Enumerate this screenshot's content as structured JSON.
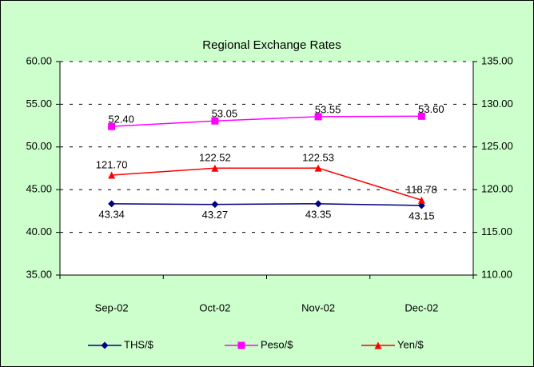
{
  "chart_data": {
    "type": "line",
    "title": "Regional Exchange Rates",
    "categories": [
      "Sep-02",
      "Oct-02",
      "Nov-02",
      "Dec-02"
    ],
    "series": [
      {
        "name": "THS/$",
        "color": "#000080",
        "marker": "diamond",
        "values": [
          43.34,
          43.27,
          43.35,
          43.15
        ],
        "value_labels": [
          "43.34",
          "43.27",
          "43.35",
          "43.15"
        ]
      },
      {
        "name": "Peso/$",
        "color": "#ff00ff",
        "marker": "square",
        "values": [
          52.4,
          53.05,
          53.55,
          53.6
        ],
        "value_labels": [
          "52.40",
          "53.05",
          "53.55",
          "53.60"
        ]
      },
      {
        "name": "Yen/$",
        "color": "#ff0000",
        "marker": "triangle",
        "axis": "y2",
        "values": [
          121.7,
          122.52,
          122.53,
          118.78
        ],
        "value_labels": [
          "121.70",
          "122.52",
          "122.53",
          "118.78"
        ]
      }
    ],
    "ylim": [
      35,
      60
    ],
    "yticks": [
      {
        "value": 35,
        "label": "35.00"
      },
      {
        "value": 40,
        "label": "40.00"
      },
      {
        "value": 45,
        "label": "45.00"
      },
      {
        "value": 50,
        "label": "50.00"
      },
      {
        "value": 55,
        "label": "55.00"
      },
      {
        "value": 60,
        "label": "60.00"
      }
    ],
    "y2lim": [
      110,
      135
    ],
    "y2ticks": [
      {
        "value": 110,
        "label": "110.00"
      },
      {
        "value": 115,
        "label": "115.00"
      },
      {
        "value": 120,
        "label": "120.00"
      },
      {
        "value": 125,
        "label": "125.00"
      },
      {
        "value": 130,
        "label": "130.00"
      },
      {
        "value": 135,
        "label": "135.00"
      }
    ],
    "grid": true,
    "legend": "bottom"
  }
}
